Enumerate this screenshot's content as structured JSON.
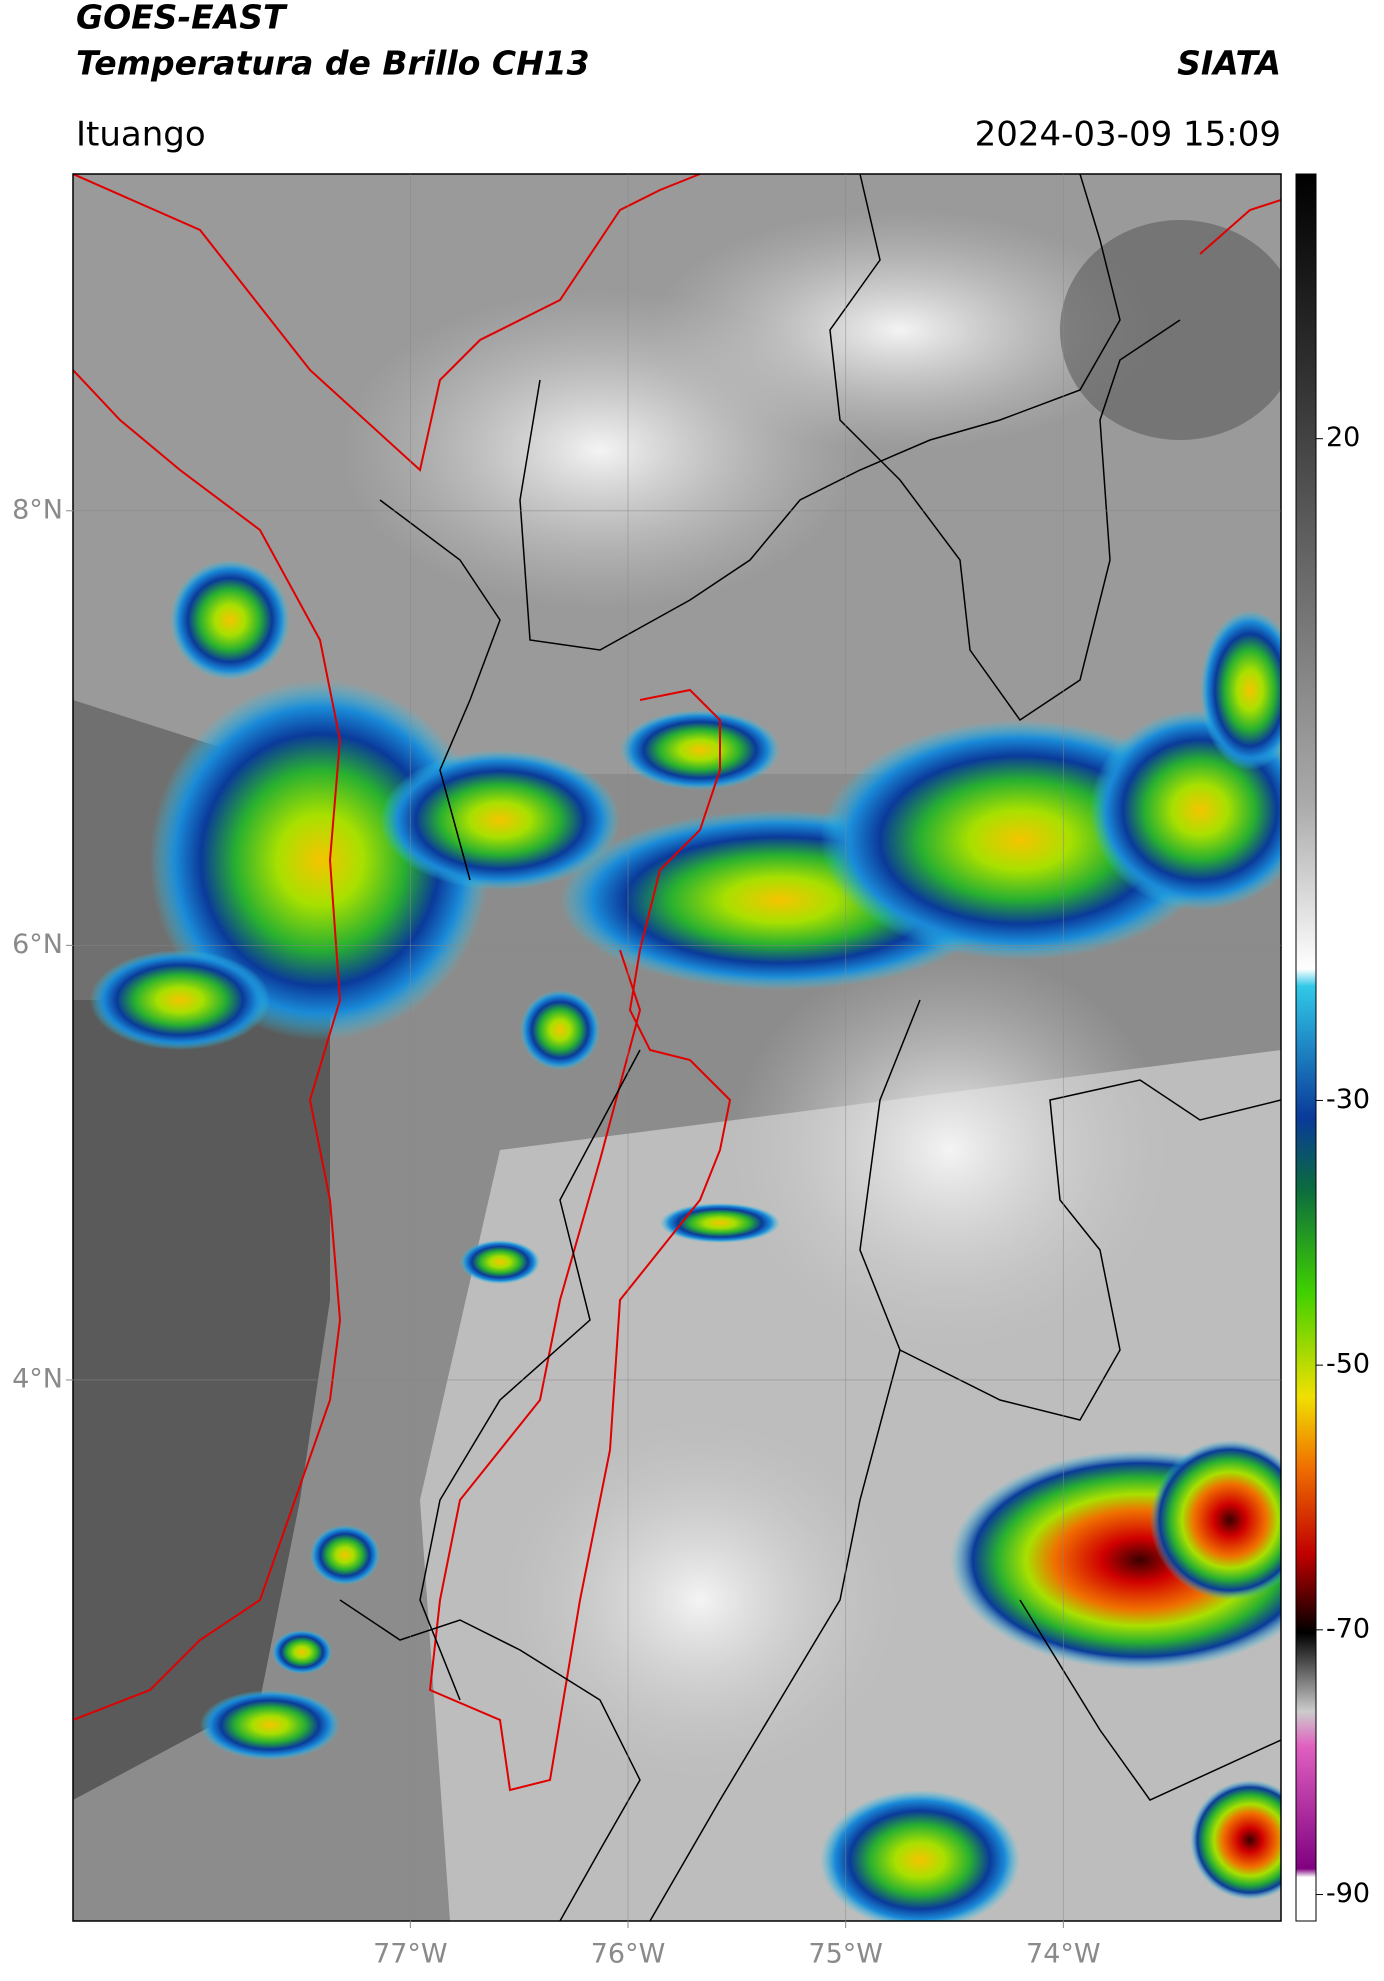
{
  "header": {
    "title": "GOES-EAST",
    "subtitle": "Temperatura de Brillo CH13",
    "source": "SIATA",
    "location": "Ituango",
    "datetime": "2024-03-09 15:09"
  },
  "map": {
    "lonlim": [
      -78.55,
      -73
    ],
    "latlim": [
      1.51,
      9.55
    ],
    "lon_ticks": [
      {
        "value": -77,
        "label": "77°W"
      },
      {
        "value": -76,
        "label": "76°W"
      },
      {
        "value": -75,
        "label": "75°W"
      },
      {
        "value": -74,
        "label": "74°W"
      }
    ],
    "lat_ticks": [
      {
        "value": 8,
        "label": "8°N"
      },
      {
        "value": 6,
        "label": "6°N"
      },
      {
        "value": 4,
        "label": "4°N"
      }
    ],
    "grid": true
  },
  "colorbar": {
    "clim": [
      -92,
      40
    ],
    "ticks": [
      20,
      -30,
      -50,
      -70,
      -90
    ]
  }
}
